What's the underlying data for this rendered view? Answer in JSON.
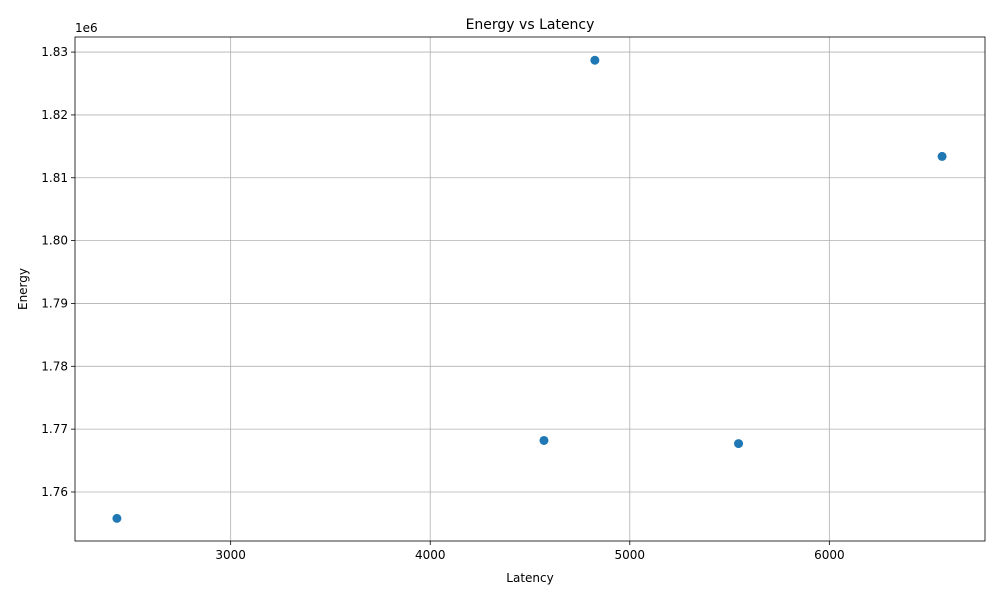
{
  "chart_data": {
    "type": "scatter",
    "title": "Energy vs Latency",
    "xlabel": "Latency",
    "ylabel": "Energy",
    "y_offset_label": "1e6",
    "xlim": [
      2220,
      6780
    ],
    "ylim": [
      1752200,
      1832400
    ],
    "xticks": [
      3000,
      4000,
      5000,
      6000
    ],
    "xtick_labels": [
      "3000",
      "4000",
      "5000",
      "6000"
    ],
    "yticks": [
      1760000,
      1770000,
      1780000,
      1790000,
      1800000,
      1810000,
      1820000,
      1830000
    ],
    "ytick_labels": [
      "1.76",
      "1.77",
      "1.78",
      "1.79",
      "1.80",
      "1.81",
      "1.82",
      "1.83"
    ],
    "grid": true,
    "marker_color": "#1f77b4",
    "points": [
      {
        "x": 2430,
        "y": 1755800
      },
      {
        "x": 4570,
        "y": 1768200
      },
      {
        "x": 4825,
        "y": 1828700
      },
      {
        "x": 5545,
        "y": 1767700
      },
      {
        "x": 6565,
        "y": 1813400
      }
    ]
  }
}
